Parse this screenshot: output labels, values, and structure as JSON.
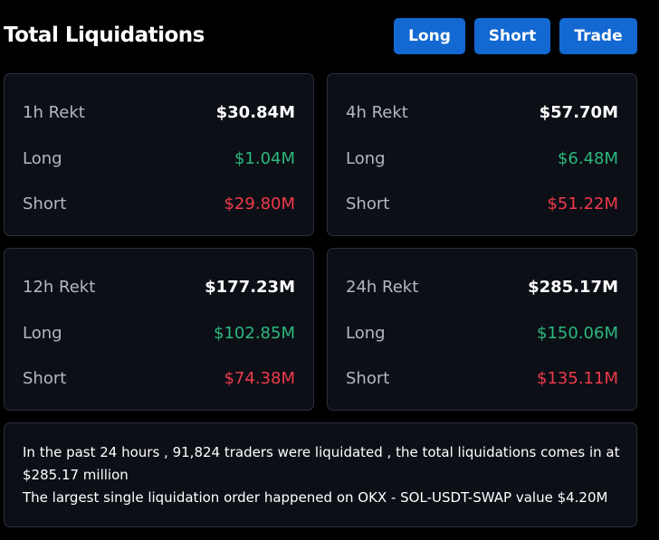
{
  "header": {
    "title": "Total Liquidations",
    "buttons": {
      "long": "Long",
      "short": "Short",
      "trade": "Trade"
    }
  },
  "colors": {
    "accent": "#1468d1",
    "long": "#2bb87e",
    "short": "#ee3a4c"
  },
  "cards": [
    {
      "period": "1h Rekt",
      "total": "$30.84M",
      "long_label": "Long",
      "long": "$1.04M",
      "short_label": "Short",
      "short": "$29.80M"
    },
    {
      "period": "4h Rekt",
      "total": "$57.70M",
      "long_label": "Long",
      "long": "$6.48M",
      "short_label": "Short",
      "short": "$51.22M"
    },
    {
      "period": "12h Rekt",
      "total": "$177.23M",
      "long_label": "Long",
      "long": "$102.85M",
      "short_label": "Short",
      "short": "$74.38M"
    },
    {
      "period": "24h Rekt",
      "total": "$285.17M",
      "long_label": "Long",
      "long": "$150.06M",
      "short_label": "Short",
      "short": "$135.11M"
    }
  ],
  "summary": {
    "line1": "In the past 24 hours , 91,824 traders were liquidated , the total liquidations comes in at",
    "line2": "$285.17 million",
    "line3": "The largest single liquidation order happened on OKX - SOL-USDT-SWAP value $4.20M"
  }
}
